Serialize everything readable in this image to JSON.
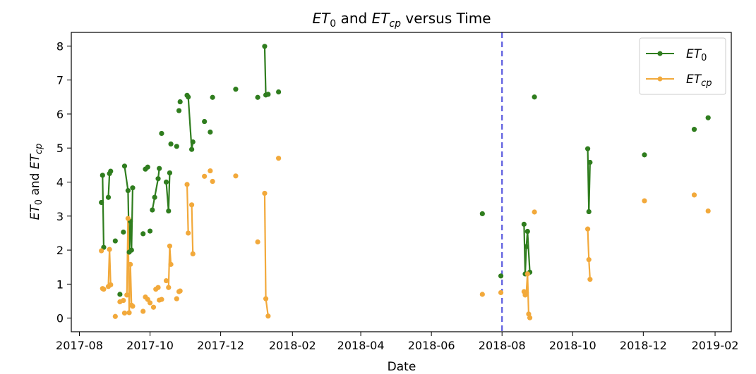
{
  "chart_data": {
    "type": "line",
    "title_main": "ET",
    "title_sub1": "0",
    "title_mid": " and ",
    "title_main2": "ET",
    "title_sub2": "cp",
    "title_end": " versus Time",
    "xlabel": "Date",
    "ylabel_main": "ET",
    "ylabel_sub1": "0",
    "ylabel_mid": " and ",
    "ylabel_main2": "ET",
    "ylabel_sub2": "cp",
    "x_axis": "date",
    "xlim": [
      "2017-07-25",
      "2019-02-15"
    ],
    "ylim": [
      -0.4,
      8.4
    ],
    "x_ticks": [
      "2017-08-01",
      "2017-10-01",
      "2017-12-01",
      "2018-02-01",
      "2018-04-01",
      "2018-06-01",
      "2018-08-01",
      "2018-10-01",
      "2018-12-01",
      "2019-02-01"
    ],
    "x_tick_labels": [
      "2017-08",
      "2017-10",
      "2017-12",
      "2018-02",
      "2018-04",
      "2018-06",
      "2018-08",
      "2018-10",
      "2018-12",
      "2019-02"
    ],
    "y_ticks": [
      0,
      1,
      2,
      3,
      4,
      5,
      6,
      7,
      8
    ],
    "y_tick_labels": [
      "0",
      "1",
      "2",
      "3",
      "4",
      "5",
      "6",
      "7",
      "8"
    ],
    "vline": {
      "date": "2018-08-01",
      "color": "#5b5bdf"
    },
    "legend_position": "top-right",
    "grid": false,
    "series": [
      {
        "name_main": "ET",
        "name_sub": "0",
        "color": "#2f7d1e",
        "points": [
          [
            "2017-08-20",
            3.4
          ],
          [
            "2017-08-21",
            4.2
          ],
          [
            "2017-08-22",
            2.08
          ],
          [
            "2017-08-26",
            3.55
          ],
          [
            "2017-08-27",
            4.25
          ],
          [
            "2017-08-28",
            4.32
          ],
          [
            "2017-09-01",
            2.27
          ],
          [
            "2017-09-05",
            0.7
          ],
          [
            "2017-09-08",
            2.53
          ],
          [
            "2017-09-09",
            4.47
          ],
          [
            "2017-09-12",
            3.75
          ],
          [
            "2017-09-13",
            1.94
          ],
          [
            "2017-09-14",
            2.85
          ],
          [
            "2017-09-15",
            2.0
          ],
          [
            "2017-09-16",
            3.83
          ],
          [
            "2017-09-25",
            2.48
          ],
          [
            "2017-09-27",
            4.38
          ],
          [
            "2017-09-29",
            4.44
          ],
          [
            "2017-10-01",
            2.56
          ],
          [
            "2017-10-03",
            3.18
          ],
          [
            "2017-10-05",
            3.55
          ],
          [
            "2017-10-08",
            4.1
          ],
          [
            "2017-10-09",
            4.4
          ],
          [
            "2017-10-11",
            5.43
          ],
          [
            "2017-10-15",
            4.0
          ],
          [
            "2017-10-17",
            3.15
          ],
          [
            "2017-10-18",
            4.27
          ],
          [
            "2017-10-19",
            5.12
          ],
          [
            "2017-10-24",
            5.05
          ],
          [
            "2017-10-26",
            6.1
          ],
          [
            "2017-10-27",
            6.36
          ],
          [
            "2017-11-02",
            6.55
          ],
          [
            "2017-11-03",
            6.5
          ],
          [
            "2017-11-06",
            4.96
          ],
          [
            "2017-11-07",
            5.18
          ],
          [
            "2017-11-17",
            5.78
          ],
          [
            "2017-11-22",
            5.47
          ],
          [
            "2017-11-24",
            6.49
          ],
          [
            "2017-12-14",
            6.73
          ],
          [
            "2018-01-02",
            6.49
          ],
          [
            "2018-01-08",
            7.99
          ],
          [
            "2018-01-09",
            6.56
          ],
          [
            "2018-01-11",
            6.58
          ],
          [
            "2018-01-20",
            6.65
          ],
          [
            "2018-07-15",
            3.07
          ],
          [
            "2018-07-31",
            1.24
          ],
          [
            "2018-08-20",
            2.76
          ],
          [
            "2018-08-21",
            1.3
          ],
          [
            "2018-08-22",
            2.1
          ],
          [
            "2018-08-23",
            2.55
          ],
          [
            "2018-08-25",
            1.35
          ],
          [
            "2018-08-29",
            6.5
          ],
          [
            "2018-10-14",
            4.98
          ],
          [
            "2018-10-15",
            3.13
          ],
          [
            "2018-10-16",
            4.58
          ],
          [
            "2018-12-02",
            4.8
          ],
          [
            "2019-01-14",
            5.55
          ],
          [
            "2019-01-26",
            5.89
          ]
        ],
        "connected": [
          [
            1,
            2
          ],
          [
            3,
            4
          ],
          [
            4,
            5
          ],
          [
            9,
            10
          ],
          [
            10,
            11
          ],
          [
            11,
            12
          ],
          [
            12,
            13
          ],
          [
            13,
            14
          ],
          [
            19,
            20
          ],
          [
            20,
            21
          ],
          [
            21,
            22
          ],
          [
            24,
            25
          ],
          [
            25,
            26
          ],
          [
            31,
            32
          ],
          [
            32,
            33
          ],
          [
            33,
            34
          ],
          [
            40,
            41
          ],
          [
            41,
            42
          ],
          [
            46,
            47
          ],
          [
            47,
            48
          ],
          [
            48,
            49
          ],
          [
            49,
            50
          ],
          [
            52,
            53
          ],
          [
            53,
            54
          ]
        ]
      },
      {
        "name_main": "ET",
        "name_sub": "cp",
        "color": "#f2a93b",
        "points": [
          [
            "2017-08-20",
            1.98
          ],
          [
            "2017-08-21",
            0.87
          ],
          [
            "2017-08-22",
            0.85
          ],
          [
            "2017-08-26",
            0.93
          ],
          [
            "2017-08-27",
            2.02
          ],
          [
            "2017-08-28",
            0.98
          ],
          [
            "2017-09-01",
            0.05
          ],
          [
            "2017-09-05",
            0.48
          ],
          [
            "2017-09-08",
            0.52
          ],
          [
            "2017-09-09",
            0.15
          ],
          [
            "2017-09-11",
            0.68
          ],
          [
            "2017-09-12",
            2.93
          ],
          [
            "2017-09-13",
            0.16
          ],
          [
            "2017-09-14",
            1.58
          ],
          [
            "2017-09-15",
            0.38
          ],
          [
            "2017-09-16",
            0.35
          ],
          [
            "2017-09-25",
            0.2
          ],
          [
            "2017-09-27",
            0.62
          ],
          [
            "2017-09-29",
            0.55
          ],
          [
            "2017-10-01",
            0.45
          ],
          [
            "2017-10-04",
            0.32
          ],
          [
            "2017-10-06",
            0.85
          ],
          [
            "2017-10-08",
            0.9
          ],
          [
            "2017-10-09",
            0.53
          ],
          [
            "2017-10-11",
            0.55
          ],
          [
            "2017-10-15",
            1.1
          ],
          [
            "2017-10-17",
            0.9
          ],
          [
            "2017-10-18",
            2.12
          ],
          [
            "2017-10-19",
            1.58
          ],
          [
            "2017-10-24",
            0.57
          ],
          [
            "2017-10-26",
            0.78
          ],
          [
            "2017-10-27",
            0.8
          ],
          [
            "2017-11-02",
            3.93
          ],
          [
            "2017-11-03",
            2.5
          ],
          [
            "2017-11-06",
            3.33
          ],
          [
            "2017-11-07",
            1.89
          ],
          [
            "2017-11-17",
            4.17
          ],
          [
            "2017-11-22",
            4.33
          ],
          [
            "2017-11-24",
            4.02
          ],
          [
            "2017-12-14",
            4.18
          ],
          [
            "2018-01-02",
            2.24
          ],
          [
            "2018-01-08",
            3.67
          ],
          [
            "2018-01-09",
            0.57
          ],
          [
            "2018-01-11",
            0.06
          ],
          [
            "2018-01-20",
            4.7
          ],
          [
            "2018-07-15",
            0.7
          ],
          [
            "2018-07-31",
            0.75
          ],
          [
            "2018-08-20",
            0.78
          ],
          [
            "2018-08-21",
            0.68
          ],
          [
            "2018-08-22",
            0.75
          ],
          [
            "2018-08-23",
            1.3
          ],
          [
            "2018-08-24",
            0.12
          ],
          [
            "2018-08-25",
            0.01
          ],
          [
            "2018-08-29",
            3.12
          ],
          [
            "2018-10-14",
            2.62
          ],
          [
            "2018-10-15",
            1.72
          ],
          [
            "2018-10-16",
            1.14
          ],
          [
            "2018-12-02",
            3.45
          ],
          [
            "2019-01-14",
            3.62
          ],
          [
            "2019-01-26",
            3.15
          ]
        ],
        "connected": [
          [
            3,
            4
          ],
          [
            4,
            5
          ],
          [
            10,
            11
          ],
          [
            11,
            12
          ],
          [
            12,
            13
          ],
          [
            13,
            14
          ],
          [
            14,
            15
          ],
          [
            26,
            27
          ],
          [
            27,
            28
          ],
          [
            32,
            33
          ],
          [
            34,
            35
          ],
          [
            41,
            42
          ],
          [
            42,
            43
          ],
          [
            47,
            48
          ],
          [
            48,
            49
          ],
          [
            49,
            50
          ],
          [
            50,
            51
          ],
          [
            51,
            52
          ],
          [
            54,
            55
          ],
          [
            55,
            56
          ]
        ]
      }
    ]
  }
}
